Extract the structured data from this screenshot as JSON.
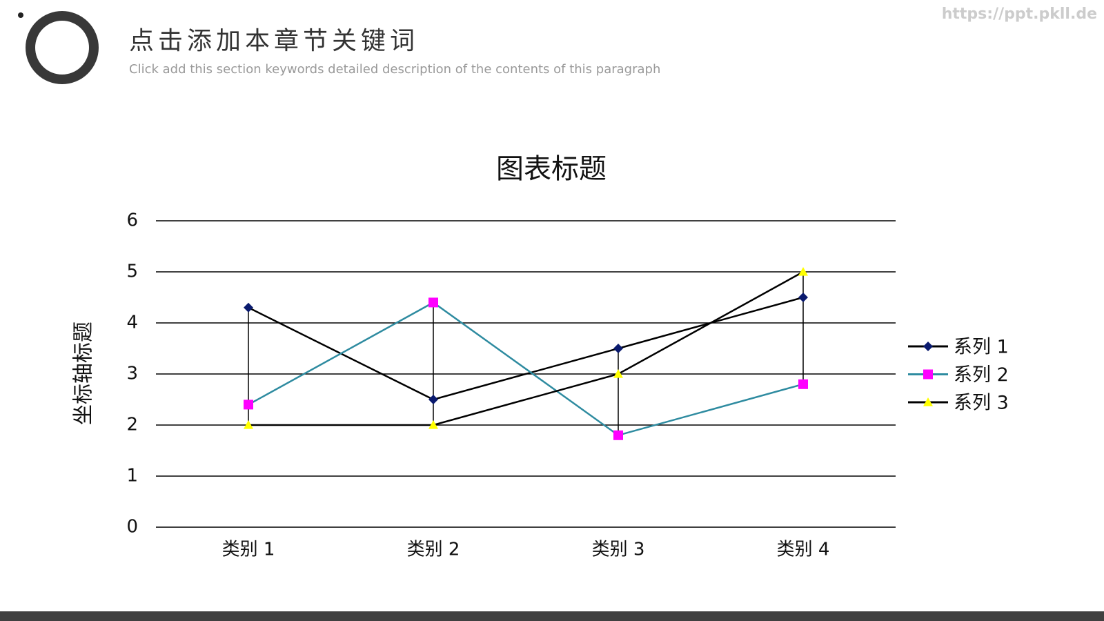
{
  "header": {
    "title": "点击添加本章节关键词",
    "subtitle": "Click add this section keywords detailed description of the contents of this paragraph",
    "watermark": "https://ppt.pkll.de"
  },
  "chart_data": {
    "type": "line",
    "title": "图表标题",
    "y_label": "坐标轴标题",
    "categories": [
      "类别 1",
      "类别 2",
      "类别 3",
      "类别 4"
    ],
    "series": [
      {
        "name": "系列 1",
        "color": "#000000",
        "marker": "diamond",
        "marker_color": "#0a1a6e",
        "values": [
          4.3,
          2.5,
          3.5,
          4.5
        ]
      },
      {
        "name": "系列 2",
        "color": "#2e8ba0",
        "marker": "square",
        "marker_color": "#ff00ff",
        "values": [
          2.4,
          4.4,
          1.8,
          2.8
        ]
      },
      {
        "name": "系列 3",
        "color": "#000000",
        "marker": "triangle",
        "marker_color": "#ffff00",
        "values": [
          2,
          2,
          3,
          5
        ]
      }
    ],
    "ylim": [
      0,
      6
    ],
    "yticks": [
      0,
      1,
      2,
      3,
      4,
      5,
      6
    ],
    "grid": true,
    "high_low_lines": true,
    "legend": "right"
  }
}
